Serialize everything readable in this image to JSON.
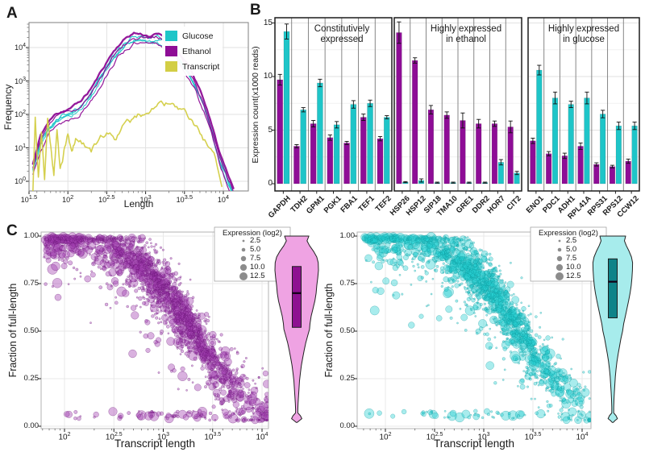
{
  "colors": {
    "glucose": "#1EC5C8",
    "ethanol": "#8E0D96",
    "transcript": "#D3CE45",
    "scatter_purple_fill": "#A13BAF",
    "scatter_purple_stroke": "#5E0A69",
    "scatter_cyan_fill": "#25CFD1",
    "scatter_cyan_stroke": "#0A9093",
    "violin_purple_fill": "#EFA3E3",
    "violin_purple_box": "#8E1191",
    "violin_cyan_fill": "#A7ECEC",
    "violin_cyan_box": "#0E8389",
    "legend_dot": "#8C8C8C",
    "grid_major": "#E2E2E2",
    "grid_minor": "#F1F1F1",
    "panel_border_light": "#8A8A8A",
    "panel_border_dark": "#1C1C1C",
    "separator": "#7A7A7A",
    "error_bar": "#111111"
  },
  "panel_a": {
    "label": "A",
    "xlabel": "Length",
    "ylabel": "Frequency",
    "legend": [
      {
        "label": "Glucose",
        "color_key": "glucose"
      },
      {
        "label": "Ethanol",
        "color_key": "ethanol"
      },
      {
        "label": "Transcript",
        "color_key": "transcript"
      }
    ]
  },
  "panel_b": {
    "label": "B",
    "ylabel": "Expression count(x1000 reads)",
    "group_titles": [
      [
        "Constitutively",
        "expressed"
      ],
      [
        "Highly expressed",
        "in ethanol"
      ],
      [
        "Highly expressed",
        "in glucose"
      ]
    ]
  },
  "panel_c": {
    "label": "C",
    "left": {
      "xlabel": "Transcript length",
      "ylabel": "Fraction of full-length",
      "legend_title": "Expression (log2)"
    },
    "right": {
      "xlabel": "Transcript length",
      "ylabel": "Fraction of full-length",
      "legend_title": "Expression (log2)"
    }
  },
  "chart_data": [
    {
      "type": "line",
      "panel": "A",
      "title": "Read length distributions vs transcript length distribution",
      "xlabel": "Length",
      "ylabel": "Frequency",
      "x_scale": "log10",
      "y_scale": "log10",
      "x_tick_exponents": [
        "1.5",
        "2",
        "2.5",
        "3",
        "3.5",
        "4"
      ],
      "y_tick_exponents": [
        "0",
        "1",
        "2",
        "3",
        "4"
      ],
      "xlim_log": [
        1.5,
        4.32
      ],
      "ylim_log": [
        -0.29,
        4.75
      ],
      "legend_entries": [
        "Glucose",
        "Ethanol",
        "Transcript"
      ],
      "read_curve": {
        "logx": [
          1.55,
          1.65,
          1.75,
          1.85,
          1.95,
          2.05,
          2.15,
          2.25,
          2.35,
          2.45,
          2.55,
          2.65,
          2.75,
          2.85,
          2.95,
          3.05,
          3.15,
          3.25,
          3.35,
          3.45,
          3.55,
          3.65,
          3.75,
          3.85,
          3.95,
          4.05,
          4.15
        ],
        "logy": [
          0.5,
          1.35,
          1.75,
          2.0,
          2.1,
          2.2,
          2.35,
          2.6,
          2.95,
          3.35,
          3.75,
          4.05,
          4.28,
          4.42,
          4.38,
          4.33,
          4.38,
          4.28,
          4.08,
          3.78,
          3.42,
          2.95,
          2.4,
          1.65,
          0.85,
          0.25,
          -0.3
        ]
      },
      "series": [
        {
          "name": "ethanol_rep1",
          "color_key": "ethanol",
          "width": 2.3,
          "offset": 0.02,
          "seed": 11
        },
        {
          "name": "ethanol_rep2",
          "color_key": "ethanol",
          "width": 1.2,
          "offset": -0.07,
          "seed": 12
        },
        {
          "name": "ethanol_rep3",
          "color_key": "ethanol",
          "width": 1.2,
          "offset": -0.3,
          "seed": 13
        },
        {
          "name": "glucose_rep1",
          "color_key": "glucose",
          "width": 1.7,
          "offset": -0.04,
          "seed": 14
        },
        {
          "name": "glucose_rep2",
          "color_key": "glucose",
          "width": 1.2,
          "offset": -0.11,
          "seed": 15
        },
        {
          "name": "glucose_rep3",
          "color_key": "glucose",
          "width": 1.2,
          "offset": -0.16,
          "seed": 16
        },
        {
          "name": "glucose_rep4",
          "color_key": "glucose",
          "width": 1.0,
          "offset": -0.21,
          "seed": 17
        }
      ],
      "transcript_series": {
        "name": "transcript",
        "color_key": "transcript",
        "width": 1.6,
        "seed": 99,
        "logx": [
          1.55,
          1.58,
          1.62,
          1.66,
          1.7,
          1.74,
          1.78,
          1.82,
          1.86,
          1.9,
          1.95,
          2.0,
          2.05,
          2.1,
          2.2,
          2.3,
          2.4,
          2.5,
          2.6,
          2.7,
          2.8,
          2.9,
          3.0,
          3.1,
          3.2,
          3.3,
          3.4,
          3.5,
          3.6,
          3.7,
          3.8,
          3.9,
          4.0
        ],
        "logy": [
          -0.3,
          1.9,
          0.2,
          1.6,
          0.1,
          1.8,
          1.0,
          0.2,
          1.5,
          0.3,
          0.9,
          1.35,
          0.8,
          1.3,
          1.15,
          0.95,
          1.2,
          1.45,
          1.3,
          1.6,
          1.75,
          1.9,
          2.05,
          2.25,
          2.35,
          2.3,
          2.15,
          1.95,
          1.7,
          1.45,
          1.05,
          0.55,
          -0.2
        ]
      }
    },
    {
      "type": "bar",
      "panel": "B",
      "title": "Expression counts per gene in ethanol vs glucose",
      "ylabel": "Expression count(x1000 reads)",
      "yticks": [
        0,
        5,
        10,
        15
      ],
      "yticks_minor": [
        2.5,
        7.5,
        12.5
      ],
      "ylim": [
        0,
        15.5
      ],
      "series_names": [
        "Ethanol",
        "Glucose"
      ],
      "groups": [
        {
          "title_lines": [
            "Constitutively",
            "expressed"
          ],
          "genes": [
            "GAPDH",
            "TDH2",
            "GPM1",
            "PGK1",
            "FBA1",
            "TEF1",
            "TEF2"
          ],
          "ethanol": [
            9.7,
            3.5,
            5.6,
            4.3,
            3.8,
            6.2,
            4.2
          ],
          "ethanol_err": [
            0.5,
            0.15,
            0.3,
            0.25,
            0.15,
            0.3,
            0.2
          ],
          "glucose": [
            14.2,
            6.9,
            9.4,
            5.5,
            7.4,
            7.5,
            6.2
          ],
          "glucose_err": [
            0.7,
            0.2,
            0.35,
            0.3,
            0.35,
            0.3,
            0.15
          ]
        },
        {
          "title_lines": [
            "Highly expressed",
            "in ethanol"
          ],
          "genes": [
            "HSP26",
            "HSP12",
            "SIP18",
            "TMA10",
            "GRE1",
            "DDR2",
            "HOR7",
            "CIT2"
          ],
          "ethanol": [
            14.1,
            11.5,
            6.9,
            6.4,
            5.9,
            5.6,
            5.6,
            5.3
          ],
          "ethanol_err": [
            1.0,
            0.25,
            0.4,
            0.3,
            0.7,
            0.4,
            0.25,
            0.55
          ],
          "glucose": [
            0.15,
            0.3,
            0.1,
            0.1,
            0.1,
            0.1,
            2.0,
            1.0
          ],
          "glucose_err": [
            0.05,
            0.15,
            0.05,
            0.05,
            0.05,
            0.05,
            0.25,
            0.15
          ]
        },
        {
          "title_lines": [
            "Highly expressed",
            "in glucose"
          ],
          "genes": [
            "ENO1",
            "PDC1",
            "ADH1",
            "RPL41A",
            "RPS31",
            "RPS12",
            "CCW12"
          ],
          "ethanol": [
            4.0,
            2.8,
            2.6,
            3.5,
            1.8,
            1.6,
            2.1
          ],
          "ethanol_err": [
            0.25,
            0.2,
            0.25,
            0.3,
            0.15,
            0.12,
            0.2
          ],
          "glucose": [
            10.6,
            8.0,
            7.4,
            8.0,
            6.5,
            5.4,
            5.4
          ],
          "glucose_err": [
            0.45,
            0.55,
            0.3,
            0.55,
            0.35,
            0.35,
            0.35
          ]
        }
      ]
    },
    {
      "type": "scatter",
      "panel": "C",
      "title": "Fraction of full-length reads vs transcript length",
      "xlabel": "Transcript length",
      "ylabel": "Fraction of full-length",
      "x_scale": "log10",
      "x_tick_exponents": [
        "2",
        "2.5",
        "3",
        "3.5",
        "4"
      ],
      "y_ticks": [
        "1.00",
        "0.75",
        "0.50",
        "0.25",
        "0.00"
      ],
      "y_tick_values": [
        1.0,
        0.75,
        0.5,
        0.25,
        0.0
      ],
      "legend": {
        "title": "Expression (log2)",
        "sizes": [
          "2.5",
          "5.0",
          "7.5",
          "10.0",
          "12.5"
        ]
      },
      "plots": [
        {
          "name": "ethanol",
          "n_points": 1600,
          "seed": 2024,
          "trend_mid_bp": 2000,
          "trend_exp": 1.4,
          "fill_key": "scatter_purple_fill",
          "stroke_key": "scatter_purple_stroke",
          "violin": {
            "fill_key": "violin_purple_fill",
            "box_key": "violin_purple_box",
            "q1": 0.52,
            "median": 0.7,
            "q3": 0.84,
            "profile": [
              [
                1.0,
                0.52
              ],
              [
                0.975,
                0.44
              ],
              [
                0.95,
                0.55
              ],
              [
                0.92,
                0.72
              ],
              [
                0.89,
                0.86
              ],
              [
                0.86,
                0.92
              ],
              [
                0.82,
                0.93
              ],
              [
                0.78,
                0.9
              ],
              [
                0.74,
                0.86
              ],
              [
                0.7,
                0.83
              ],
              [
                0.66,
                0.78
              ],
              [
                0.62,
                0.7
              ],
              [
                0.58,
                0.62
              ],
              [
                0.54,
                0.57
              ],
              [
                0.51,
                0.55
              ],
              [
                0.48,
                0.48
              ],
              [
                0.44,
                0.39
              ],
              [
                0.4,
                0.32
              ],
              [
                0.36,
                0.26
              ],
              [
                0.32,
                0.2
              ],
              [
                0.28,
                0.16
              ],
              [
                0.24,
                0.12
              ],
              [
                0.2,
                0.1
              ],
              [
                0.16,
                0.08
              ],
              [
                0.12,
                0.06
              ],
              [
                0.09,
                0.05
              ],
              [
                0.07,
                0.05
              ],
              [
                0.055,
                0.16
              ],
              [
                0.04,
                0.22
              ],
              [
                0.03,
                0.12
              ],
              [
                0.02,
                0.02
              ]
            ]
          }
        },
        {
          "name": "glucose",
          "n_points": 1500,
          "seed": 7070,
          "trend_mid_bp": 2300,
          "trend_exp": 1.4,
          "fill_key": "scatter_cyan_fill",
          "stroke_key": "scatter_cyan_stroke",
          "violin": {
            "fill_key": "violin_cyan_fill",
            "box_key": "violin_cyan_box",
            "q1": 0.57,
            "median": 0.76,
            "q3": 0.88,
            "profile": [
              [
                1.0,
                0.55
              ],
              [
                0.975,
                0.5
              ],
              [
                0.95,
                0.58
              ],
              [
                0.92,
                0.7
              ],
              [
                0.89,
                0.8
              ],
              [
                0.86,
                0.85
              ],
              [
                0.82,
                0.84
              ],
              [
                0.78,
                0.82
              ],
              [
                0.74,
                0.79
              ],
              [
                0.7,
                0.74
              ],
              [
                0.66,
                0.68
              ],
              [
                0.62,
                0.61
              ],
              [
                0.58,
                0.54
              ],
              [
                0.54,
                0.47
              ],
              [
                0.5,
                0.42
              ],
              [
                0.46,
                0.35
              ],
              [
                0.42,
                0.29
              ],
              [
                0.38,
                0.23
              ],
              [
                0.34,
                0.18
              ],
              [
                0.3,
                0.14
              ],
              [
                0.26,
                0.11
              ],
              [
                0.22,
                0.09
              ],
              [
                0.18,
                0.07
              ],
              [
                0.14,
                0.05
              ],
              [
                0.1,
                0.04
              ],
              [
                0.07,
                0.04
              ],
              [
                0.055,
                0.14
              ],
              [
                0.04,
                0.2
              ],
              [
                0.03,
                0.1
              ],
              [
                0.02,
                0.02
              ]
            ]
          }
        }
      ]
    }
  ]
}
